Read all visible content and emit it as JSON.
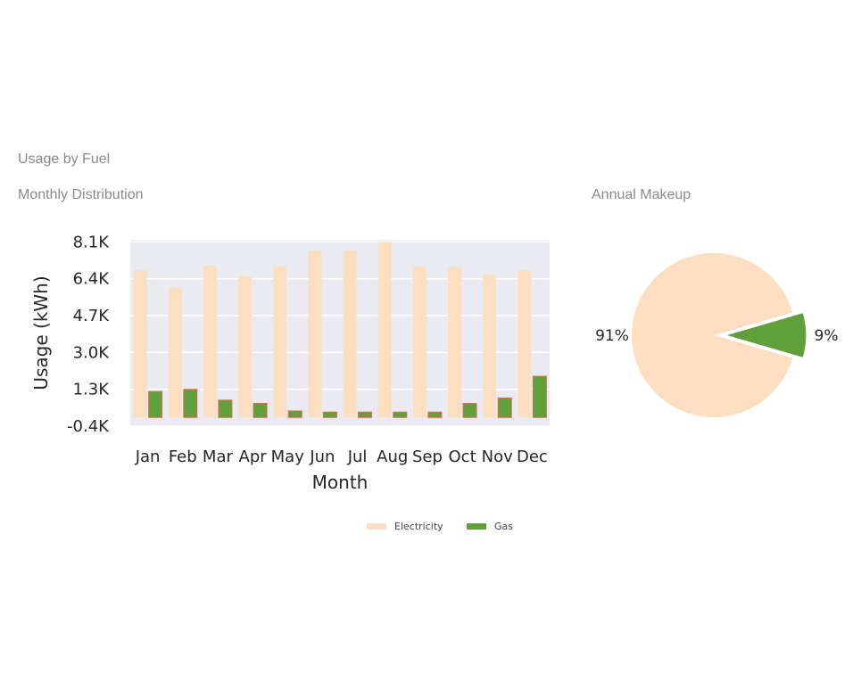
{
  "dashboard": {
    "title": "Usage by Fuel",
    "left_subtitle": "Monthly Distribution",
    "right_subtitle": "Annual Makeup"
  },
  "colors": {
    "electricity": "#fbdfc0",
    "gas": "#5fa03a",
    "gas_edge": "#d9704a",
    "plot_bg": "#eaeaf2"
  },
  "chart_data": [
    {
      "type": "bar",
      "xlabel": "Month",
      "ylabel": "Usage (kWh)",
      "categories": [
        "Jan",
        "Feb",
        "Mar",
        "Apr",
        "May",
        "Jun",
        "Jul",
        "Aug",
        "Sep",
        "Oct",
        "Nov",
        "Dec"
      ],
      "yticks": [
        -400,
        1300,
        3000,
        4700,
        6400,
        8100
      ],
      "ytick_labels": [
        "-0.4K",
        "1.3K",
        "3.0K",
        "4.7K",
        "6.4K",
        "8.1K"
      ],
      "ylim": [
        -400,
        8200
      ],
      "grid": true,
      "legend": "bottom-center",
      "series": [
        {
          "name": "Electricity",
          "values": [
            6800,
            6000,
            7000,
            6500,
            6950,
            7700,
            7700,
            8100,
            6950,
            6950,
            6600,
            6800
          ]
        },
        {
          "name": "Gas",
          "values": [
            1200,
            1300,
            800,
            650,
            300,
            250,
            250,
            250,
            250,
            650,
            900,
            1900
          ]
        }
      ]
    },
    {
      "type": "pie",
      "labels": [
        "Electricity",
        "Gas"
      ],
      "values": [
        91,
        9
      ],
      "value_labels": [
        "91%",
        "9%"
      ],
      "exploded": [
        "Gas"
      ]
    }
  ]
}
